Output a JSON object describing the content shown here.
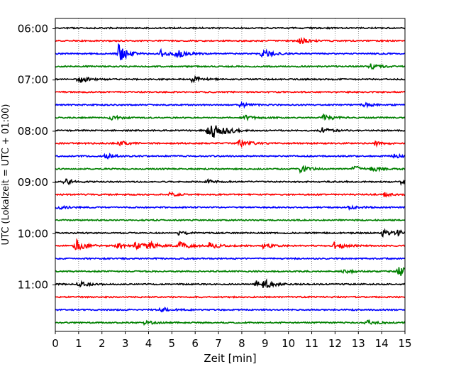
{
  "chart_data": {
    "type": "line",
    "xlabel": "Zeit  [min]",
    "ylabel": "UTC (Lokalzeit = UTC + 01:00)",
    "xlim": [
      0,
      15
    ],
    "x_ticks": [
      0,
      1,
      2,
      3,
      4,
      5,
      6,
      7,
      8,
      9,
      10,
      11,
      12,
      13,
      14,
      15
    ],
    "x_grid": true,
    "y_ticks": [
      "06:00",
      "07:00",
      "08:00",
      "09:00",
      "10:00",
      "11:00"
    ],
    "trace_interval_min": 15,
    "colors": [
      "#000000",
      "#ff0000",
      "#0000ff",
      "#008000"
    ],
    "traces": [
      {
        "start": "06:00",
        "color": "#000000",
        "events": []
      },
      {
        "start": "06:15",
        "color": "#ff0000",
        "events": [
          {
            "t": 10.45,
            "amp": 1.0
          }
        ]
      },
      {
        "start": "06:30",
        "color": "#0000ff",
        "events": [
          {
            "t": 2.7,
            "amp": 3.0
          },
          {
            "t": 4.5,
            "amp": 1.2
          },
          {
            "t": 5.2,
            "amp": 1.5
          },
          {
            "t": 8.85,
            "amp": 1.6
          }
        ]
      },
      {
        "start": "06:45",
        "color": "#008000",
        "events": [
          {
            "t": 13.5,
            "amp": 0.8
          }
        ]
      },
      {
        "start": "07:00",
        "color": "#000000",
        "events": [
          {
            "t": 1.0,
            "amp": 1.2
          },
          {
            "t": 5.85,
            "amp": 1.2
          }
        ]
      },
      {
        "start": "07:15",
        "color": "#ff0000",
        "events": []
      },
      {
        "start": "07:30",
        "color": "#0000ff",
        "events": [
          {
            "t": 7.9,
            "amp": 0.9
          },
          {
            "t": 13.2,
            "amp": 0.7
          }
        ]
      },
      {
        "start": "07:45",
        "color": "#008000",
        "events": [
          {
            "t": 2.35,
            "amp": 0.8
          },
          {
            "t": 8.1,
            "amp": 0.8
          },
          {
            "t": 11.5,
            "amp": 1.0
          }
        ]
      },
      {
        "start": "08:00",
        "color": "#000000",
        "events": [
          {
            "t": 6.5,
            "amp": 1.6
          },
          {
            "t": 6.75,
            "amp": 1.8
          },
          {
            "t": 7.2,
            "amp": 1.0
          },
          {
            "t": 11.4,
            "amp": 1.0
          }
        ]
      },
      {
        "start": "08:15",
        "color": "#ff0000",
        "events": [
          {
            "t": 2.75,
            "amp": 0.8
          },
          {
            "t": 7.85,
            "amp": 1.6
          },
          {
            "t": 13.7,
            "amp": 0.7
          }
        ]
      },
      {
        "start": "08:30",
        "color": "#0000ff",
        "events": [
          {
            "t": 2.1,
            "amp": 1.0
          },
          {
            "t": 14.5,
            "amp": 0.6
          }
        ]
      },
      {
        "start": "08:45",
        "color": "#008000",
        "events": [
          {
            "t": 10.5,
            "amp": 1.1
          },
          {
            "t": 12.75,
            "amp": 1.2
          },
          {
            "t": 13.5,
            "amp": 0.9
          }
        ]
      },
      {
        "start": "09:00",
        "color": "#000000",
        "events": [
          {
            "t": 0.4,
            "amp": 1.0
          },
          {
            "t": 6.5,
            "amp": 0.6
          },
          {
            "t": 14.8,
            "amp": 0.6
          }
        ]
      },
      {
        "start": "09:15",
        "color": "#ff0000",
        "events": [
          {
            "t": 4.9,
            "amp": 0.6
          },
          {
            "t": 14.1,
            "amp": 0.6
          }
        ]
      },
      {
        "start": "09:30",
        "color": "#0000ff",
        "events": [
          {
            "t": 0.1,
            "amp": 0.6
          },
          {
            "t": 12.6,
            "amp": 0.6
          }
        ]
      },
      {
        "start": "09:45",
        "color": "#008000",
        "events": []
      },
      {
        "start": "10:00",
        "color": "#000000",
        "events": [
          {
            "t": 5.2,
            "amp": 0.7
          },
          {
            "t": 14.0,
            "amp": 1.1
          },
          {
            "t": 14.6,
            "amp": 1.0
          }
        ]
      },
      {
        "start": "10:15",
        "color": "#ff0000",
        "events": [
          {
            "t": 0.85,
            "amp": 2.2
          },
          {
            "t": 2.6,
            "amp": 1.2
          },
          {
            "t": 3.4,
            "amp": 1.2
          },
          {
            "t": 4.0,
            "amp": 1.2
          },
          {
            "t": 5.3,
            "amp": 1.4
          },
          {
            "t": 6.6,
            "amp": 1.0
          },
          {
            "t": 8.9,
            "amp": 1.0
          },
          {
            "t": 11.95,
            "amp": 1.4
          }
        ]
      },
      {
        "start": "10:30",
        "color": "#0000ff",
        "events": []
      },
      {
        "start": "10:45",
        "color": "#008000",
        "events": [
          {
            "t": 12.3,
            "amp": 0.7
          },
          {
            "t": 14.7,
            "amp": 2.0
          }
        ]
      },
      {
        "start": "11:00",
        "color": "#000000",
        "events": [
          {
            "t": 1.0,
            "amp": 0.8
          },
          {
            "t": 8.6,
            "amp": 1.1
          },
          {
            "t": 8.9,
            "amp": 1.3
          }
        ]
      },
      {
        "start": "11:15",
        "color": "#ff0000",
        "events": []
      },
      {
        "start": "11:30",
        "color": "#0000ff",
        "events": [
          {
            "t": 4.55,
            "amp": 0.8
          }
        ]
      },
      {
        "start": "11:45",
        "color": "#008000",
        "events": [
          {
            "t": 3.8,
            "amp": 0.7
          },
          {
            "t": 13.3,
            "amp": 0.8
          }
        ]
      }
    ]
  }
}
